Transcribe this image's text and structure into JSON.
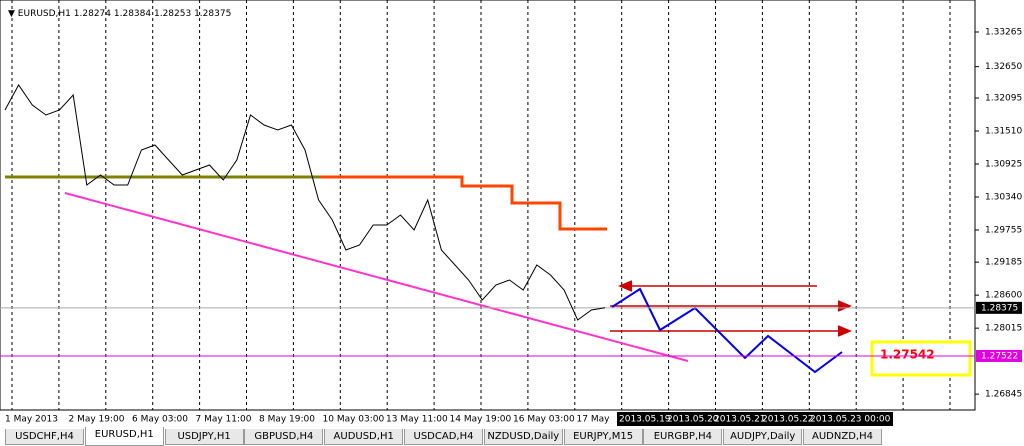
{
  "chart_data": {
    "type": "line",
    "symbol": "EURUSD,H1",
    "open": 1.28274,
    "high": 1.28384,
    "low": 1.28253,
    "close": 1.28375,
    "values": [
      1.31882,
      1.32325,
      1.31971,
      1.31794,
      1.31882,
      1.32148,
      1.30553,
      1.3073,
      1.30553,
      1.30553,
      1.31173,
      1.31262,
      1.30996,
      1.3073,
      1.30819,
      1.30907,
      1.30641,
      1.30996,
      1.31794,
      1.31616,
      1.31528,
      1.31616,
      1.31173,
      1.30287,
      1.29932,
      1.294,
      1.29489,
      1.29844,
      1.29844,
      1.30021,
      1.29755,
      1.30287,
      1.294,
      1.29135,
      1.28869,
      1.28514,
      1.2878,
      1.28869,
      1.28691,
      1.29135,
      1.28957,
      1.28691,
      1.2816,
      1.28337,
      1.28375
    ],
    "color": "#000000",
    "step_line": {
      "color": "#ff4500",
      "values": [
        1.30695,
        1.30535,
        1.30234,
        1.29773
      ]
    },
    "base_line": {
      "color": "#808000",
      "value": 1.30695
    },
    "level": {
      "value": 1.27522,
      "color": "#e000e0"
    },
    "annotation": 1.27542,
    "ylim": [
      1.26564,
      1.33832
    ],
    "yticks": [
      1.33265,
      {
        "value": 1.3265,
        "label": "1.32650"
      },
      1.32095,
      {
        "value": 1.3151,
        "label": "1.31510"
      },
      1.30925,
      {
        "value": 1.3034,
        "label": "1.30340"
      },
      1.29755,
      1.29185,
      {
        "value": 1.286,
        "label": "1.28600"
      },
      1.28015,
      1.26845
    ],
    "grid": false,
    "time_labels": [
      "1 May 2013",
      "2 May 19:00",
      "6 May 03:00",
      "7 May 11:00",
      "8 May 19:00",
      "10 May 03:00",
      "13 May 11:00",
      "14 May 19:00",
      "16 May 03:00",
      "17 May"
    ],
    "future_labels": [
      "2013.05.19",
      "2013.05.20",
      "2013.05.21",
      "2013.05.22",
      "2013.05.23 00:00"
    ]
  },
  "tabs": [
    "USDCHF,H4",
    "EURUSD,H1",
    "USDJPY,H1",
    "GBPUSD,H4",
    "AUDUSD,H1",
    "USDCAD,H4",
    "NZDUSD,Daily",
    "EURJPY,M15",
    "EURGBP,H4",
    "AUDJPY,Daily",
    "AUDNZD,H4"
  ],
  "active_tab": 1
}
